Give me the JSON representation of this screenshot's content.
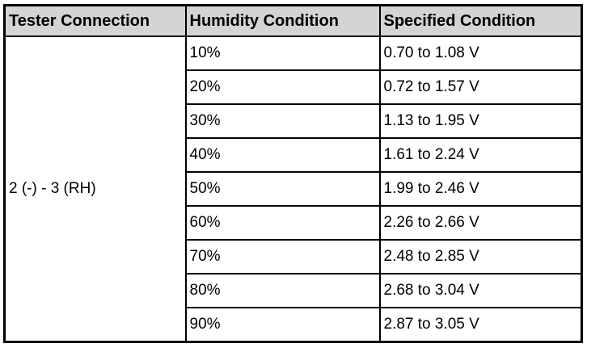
{
  "table": {
    "header": [
      "Tester Connection",
      "Humidity Condition",
      "Specified Condition"
    ],
    "connection": "2 (-) - 3 (RH)",
    "rows": [
      [
        "10%",
        "0.70 to 1.08 V"
      ],
      [
        "20%",
        "0.72 to 1.57 V"
      ],
      [
        "30%",
        "1.13 to 1.95 V"
      ],
      [
        "40%",
        "1.61 to 2.24 V"
      ],
      [
        "50%",
        "1.99 to 2.46 V"
      ],
      [
        "60%",
        "2.26 to 2.66 V"
      ],
      [
        "70%",
        "2.48 to 2.85 V"
      ],
      [
        "80%",
        "2.68 to 3.04 V"
      ],
      [
        "90%",
        "2.87 to 3.05 V"
      ]
    ]
  }
}
